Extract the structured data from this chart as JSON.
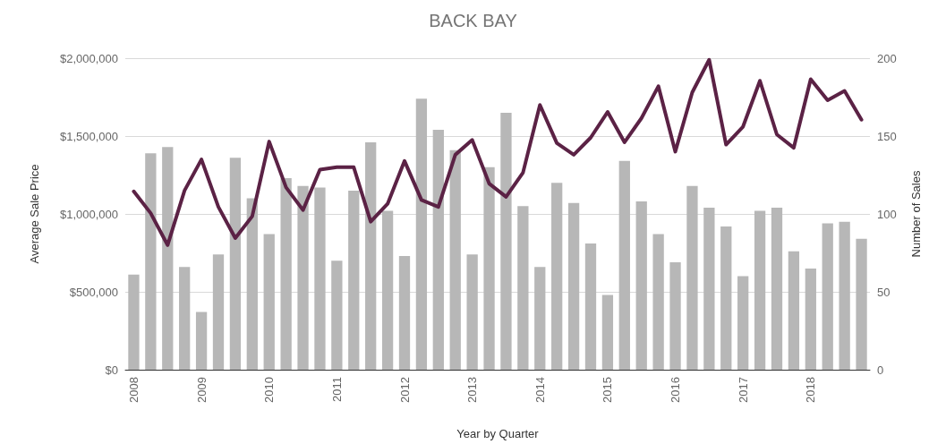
{
  "chart_data": {
    "type": "bar",
    "title": "BACK BAY",
    "xlabel": "Year by Quarter",
    "ylabel": "Average Sale Price",
    "y2label": "Number of Sales",
    "categories": [
      "2008",
      null,
      null,
      null,
      "2009",
      null,
      null,
      null,
      "2010",
      null,
      null,
      null,
      "2011",
      null,
      null,
      null,
      "2012",
      null,
      null,
      null,
      "2013",
      null,
      null,
      null,
      "2014",
      null,
      null,
      null,
      "2015",
      null,
      null,
      null,
      "2016",
      null,
      null,
      null,
      "2017",
      null,
      null,
      null,
      "2018",
      null,
      null,
      null
    ],
    "series": [
      {
        "axis": "y2",
        "color": "#b7b7b7",
        "values": [
          61,
          139,
          143,
          66,
          37,
          74,
          136,
          110,
          87,
          123,
          118,
          117,
          70,
          115,
          146,
          102,
          73,
          174,
          154,
          141,
          74,
          130,
          165,
          105,
          66,
          120,
          107,
          81,
          48,
          134,
          108,
          87,
          69,
          118,
          104,
          92,
          60,
          102,
          104,
          76,
          65,
          94,
          95,
          84
        ]
      },
      {
        "type": "line",
        "axis": "y",
        "color": "#5b2245",
        "values": [
          1145000,
          1005000,
          800000,
          1150000,
          1350000,
          1045000,
          845000,
          985000,
          1465000,
          1170000,
          1025000,
          1285000,
          1300000,
          1300000,
          950000,
          1065000,
          1340000,
          1090000,
          1045000,
          1380000,
          1475000,
          1195000,
          1110000,
          1265000,
          1700000,
          1455000,
          1380000,
          1490000,
          1655000,
          1460000,
          1615000,
          1820000,
          1400000,
          1780000,
          1990000,
          1445000,
          1560000,
          1855000,
          1510000,
          1425000,
          1865000,
          1730000,
          1790000,
          1605000
        ]
      }
    ],
    "ylim": [
      0,
      2000000
    ],
    "yticks": [
      {
        "value": 0,
        "label": "$0"
      },
      {
        "value": 500000,
        "label": "$500,000"
      },
      {
        "value": 1000000,
        "label": "$1,000,000"
      },
      {
        "value": 1500000,
        "label": "$1,500,000"
      },
      {
        "value": 2000000,
        "label": "$2,000,000"
      }
    ],
    "y2lim": [
      0,
      200
    ],
    "y2ticks": [
      0,
      50,
      100,
      150,
      200
    ],
    "grid": "y",
    "marker": "none",
    "line_style": "solid"
  }
}
